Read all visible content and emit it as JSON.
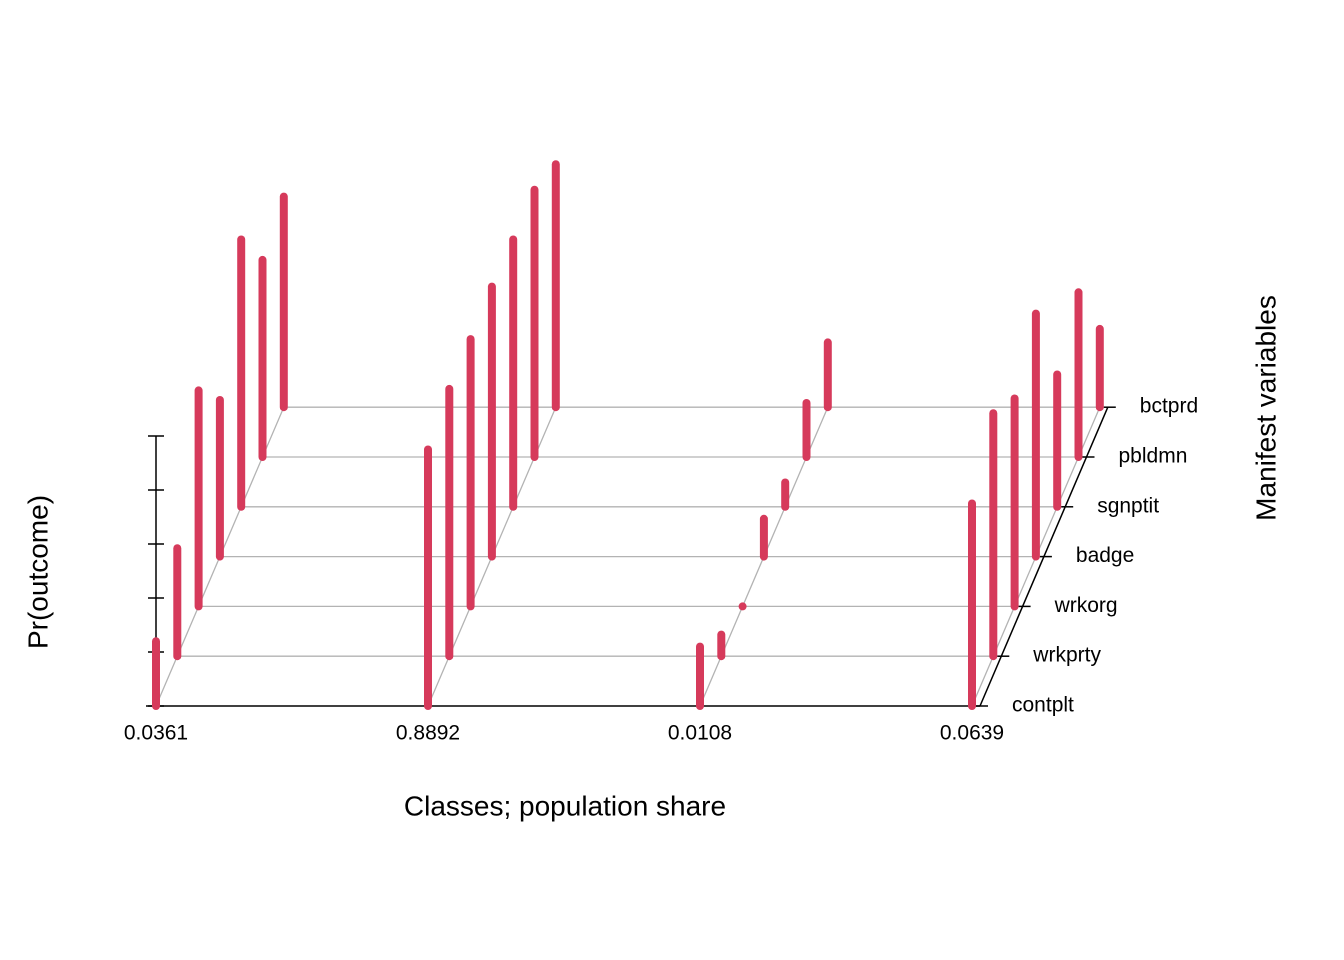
{
  "chart_data": {
    "type": "bar3d",
    "xlabel": "Classes; population share",
    "ylabel": "Pr(outcome)",
    "zlabel": "Manifest variables",
    "categories": [
      "0.0361",
      "0.8892",
      "0.0108",
      "0.0639"
    ],
    "variables": [
      "contplt",
      "wrkprty",
      "wrkorg",
      "badge",
      "sgnptit",
      "pbldmn",
      "bctprd"
    ],
    "values": [
      [
        0.24,
        0.4,
        0.8,
        0.58,
        0.99,
        0.73,
        0.78
      ],
      [
        0.95,
        0.99,
        0.99,
        1.0,
        0.99,
        0.99,
        0.9
      ],
      [
        0.22,
        0.08,
        0.0,
        0.14,
        0.09,
        0.2,
        0.24
      ],
      [
        0.75,
        0.9,
        0.77,
        0.9,
        0.49,
        0.61,
        0.29
      ]
    ],
    "color": "#d63a5b",
    "ylim": [
      0,
      1
    ],
    "yticks": [
      0,
      0.2,
      0.4,
      0.6,
      0.8,
      1.0
    ]
  }
}
